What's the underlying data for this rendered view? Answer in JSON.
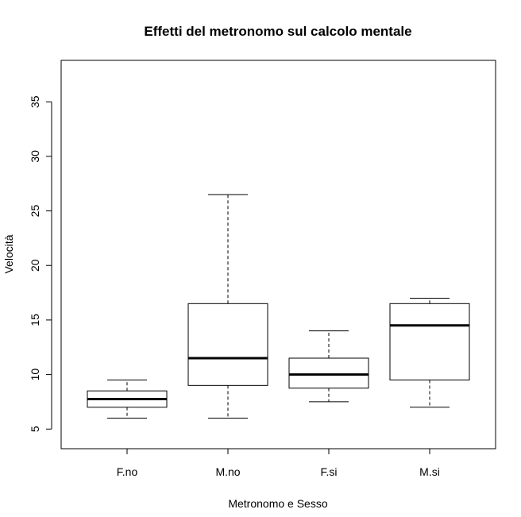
{
  "chart_data": {
    "type": "boxplot",
    "title": "Effetti del metronomo sul calcolo mentale",
    "xlabel": "Metronomo e Sesso",
    "ylabel": "Velocità",
    "ylim": [
      3.2,
      38.8
    ],
    "yticks": [
      5,
      10,
      15,
      20,
      25,
      30,
      35
    ],
    "categories": [
      "F.no",
      "M.no",
      "F.si",
      "M.si"
    ],
    "boxes": [
      {
        "category": "F.no",
        "min": 6.0,
        "q1": 7.0,
        "median": 7.75,
        "q3": 8.5,
        "max": 9.5
      },
      {
        "category": "M.no",
        "min": 6.0,
        "q1": 9.0,
        "median": 11.5,
        "q3": 16.5,
        "max": 26.5
      },
      {
        "category": "F.si",
        "min": 7.5,
        "q1": 8.75,
        "median": 10.0,
        "q3": 11.5,
        "max": 14.0
      },
      {
        "category": "M.si",
        "min": 7.0,
        "q1": 9.5,
        "median": 14.5,
        "q3": 16.5,
        "max": 17.0
      }
    ],
    "grid": false,
    "legend": "none"
  }
}
